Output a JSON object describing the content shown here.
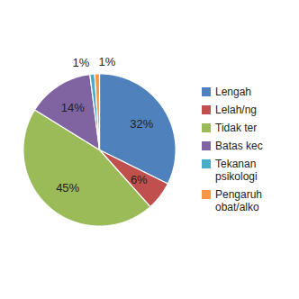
{
  "chart_data": {
    "type": "pie",
    "categories": [
      "Lengah",
      "Lelah/ng",
      "Tidak ter",
      "Batas kec",
      "Tekanan psikologi",
      "Pengaruh obat/alko"
    ],
    "values": [
      32,
      6,
      45,
      14,
      1,
      1
    ],
    "value_labels": [
      "32%",
      "6%",
      "45%",
      "14%",
      "1%",
      "1%"
    ],
    "colors": [
      "#4f81bd",
      "#c0504d",
      "#9bbb59",
      "#8064a2",
      "#4bacc6",
      "#f79646"
    ],
    "data_labels": true,
    "legend": "right"
  }
}
